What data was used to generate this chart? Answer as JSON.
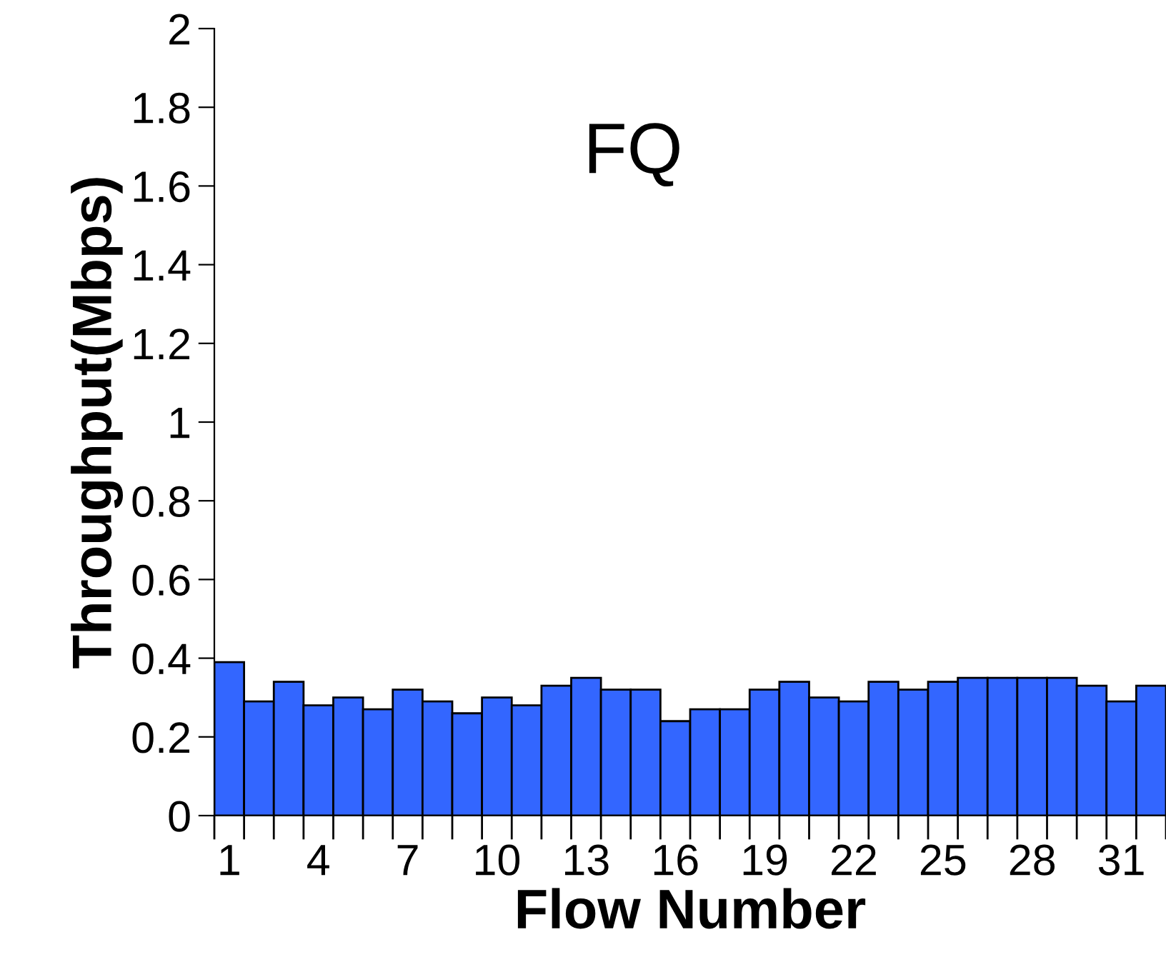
{
  "chart_data": {
    "type": "bar",
    "title": "FQ",
    "xlabel": "Flow Number",
    "ylabel": "Throughput(Mbps)",
    "categories": [
      "1",
      null,
      null,
      "4",
      null,
      null,
      "7",
      null,
      null,
      "10",
      null,
      null,
      "13",
      null,
      null,
      "16",
      null,
      null,
      "19",
      null,
      null,
      "22",
      null,
      null,
      "25",
      null,
      null,
      "28",
      null,
      null,
      "31",
      null
    ],
    "values": [
      0.39,
      0.29,
      0.34,
      0.28,
      0.3,
      0.27,
      0.32,
      0.29,
      0.26,
      0.3,
      0.28,
      0.33,
      0.35,
      0.32,
      0.32,
      0.24,
      0.27,
      0.27,
      0.32,
      0.34,
      0.3,
      0.29,
      0.34,
      0.32,
      0.34,
      0.35,
      0.35,
      0.35,
      0.35,
      0.33,
      0.29,
      0.33
    ],
    "color": "#3366ff",
    "ylim": [
      0,
      2
    ],
    "yticks": [
      0,
      0.2,
      0.4,
      0.6,
      0.8,
      1,
      1.2,
      1.4,
      1.6,
      1.8,
      2
    ],
    "grid": false
  }
}
